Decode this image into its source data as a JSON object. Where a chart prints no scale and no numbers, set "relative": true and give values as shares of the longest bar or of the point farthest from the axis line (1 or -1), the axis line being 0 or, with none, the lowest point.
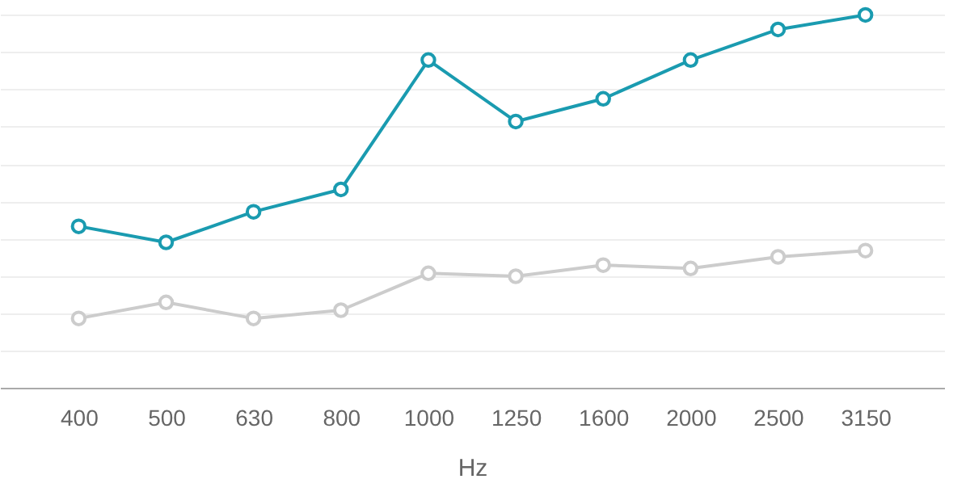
{
  "chart_data": {
    "type": "line",
    "xlabel": "Hz",
    "categories": [
      "400",
      "500",
      "630",
      "800",
      "1000",
      "1250",
      "1600",
      "2000",
      "2500",
      "3150"
    ],
    "relative": true,
    "grid": "y",
    "marker": "circle",
    "line_style": "solid",
    "series": [
      {
        "color": "#1a9bb0",
        "values": [
          0.433,
          0.39,
          0.472,
          0.532,
          0.879,
          0.714,
          0.775,
          0.879,
          0.961,
          1
        ]
      },
      {
        "color": "#cccccc",
        "values": [
          0.186,
          0.229,
          0.186,
          0.208,
          0.307,
          0.299,
          0.329,
          0.32,
          0.351,
          0.368
        ]
      }
    ]
  }
}
